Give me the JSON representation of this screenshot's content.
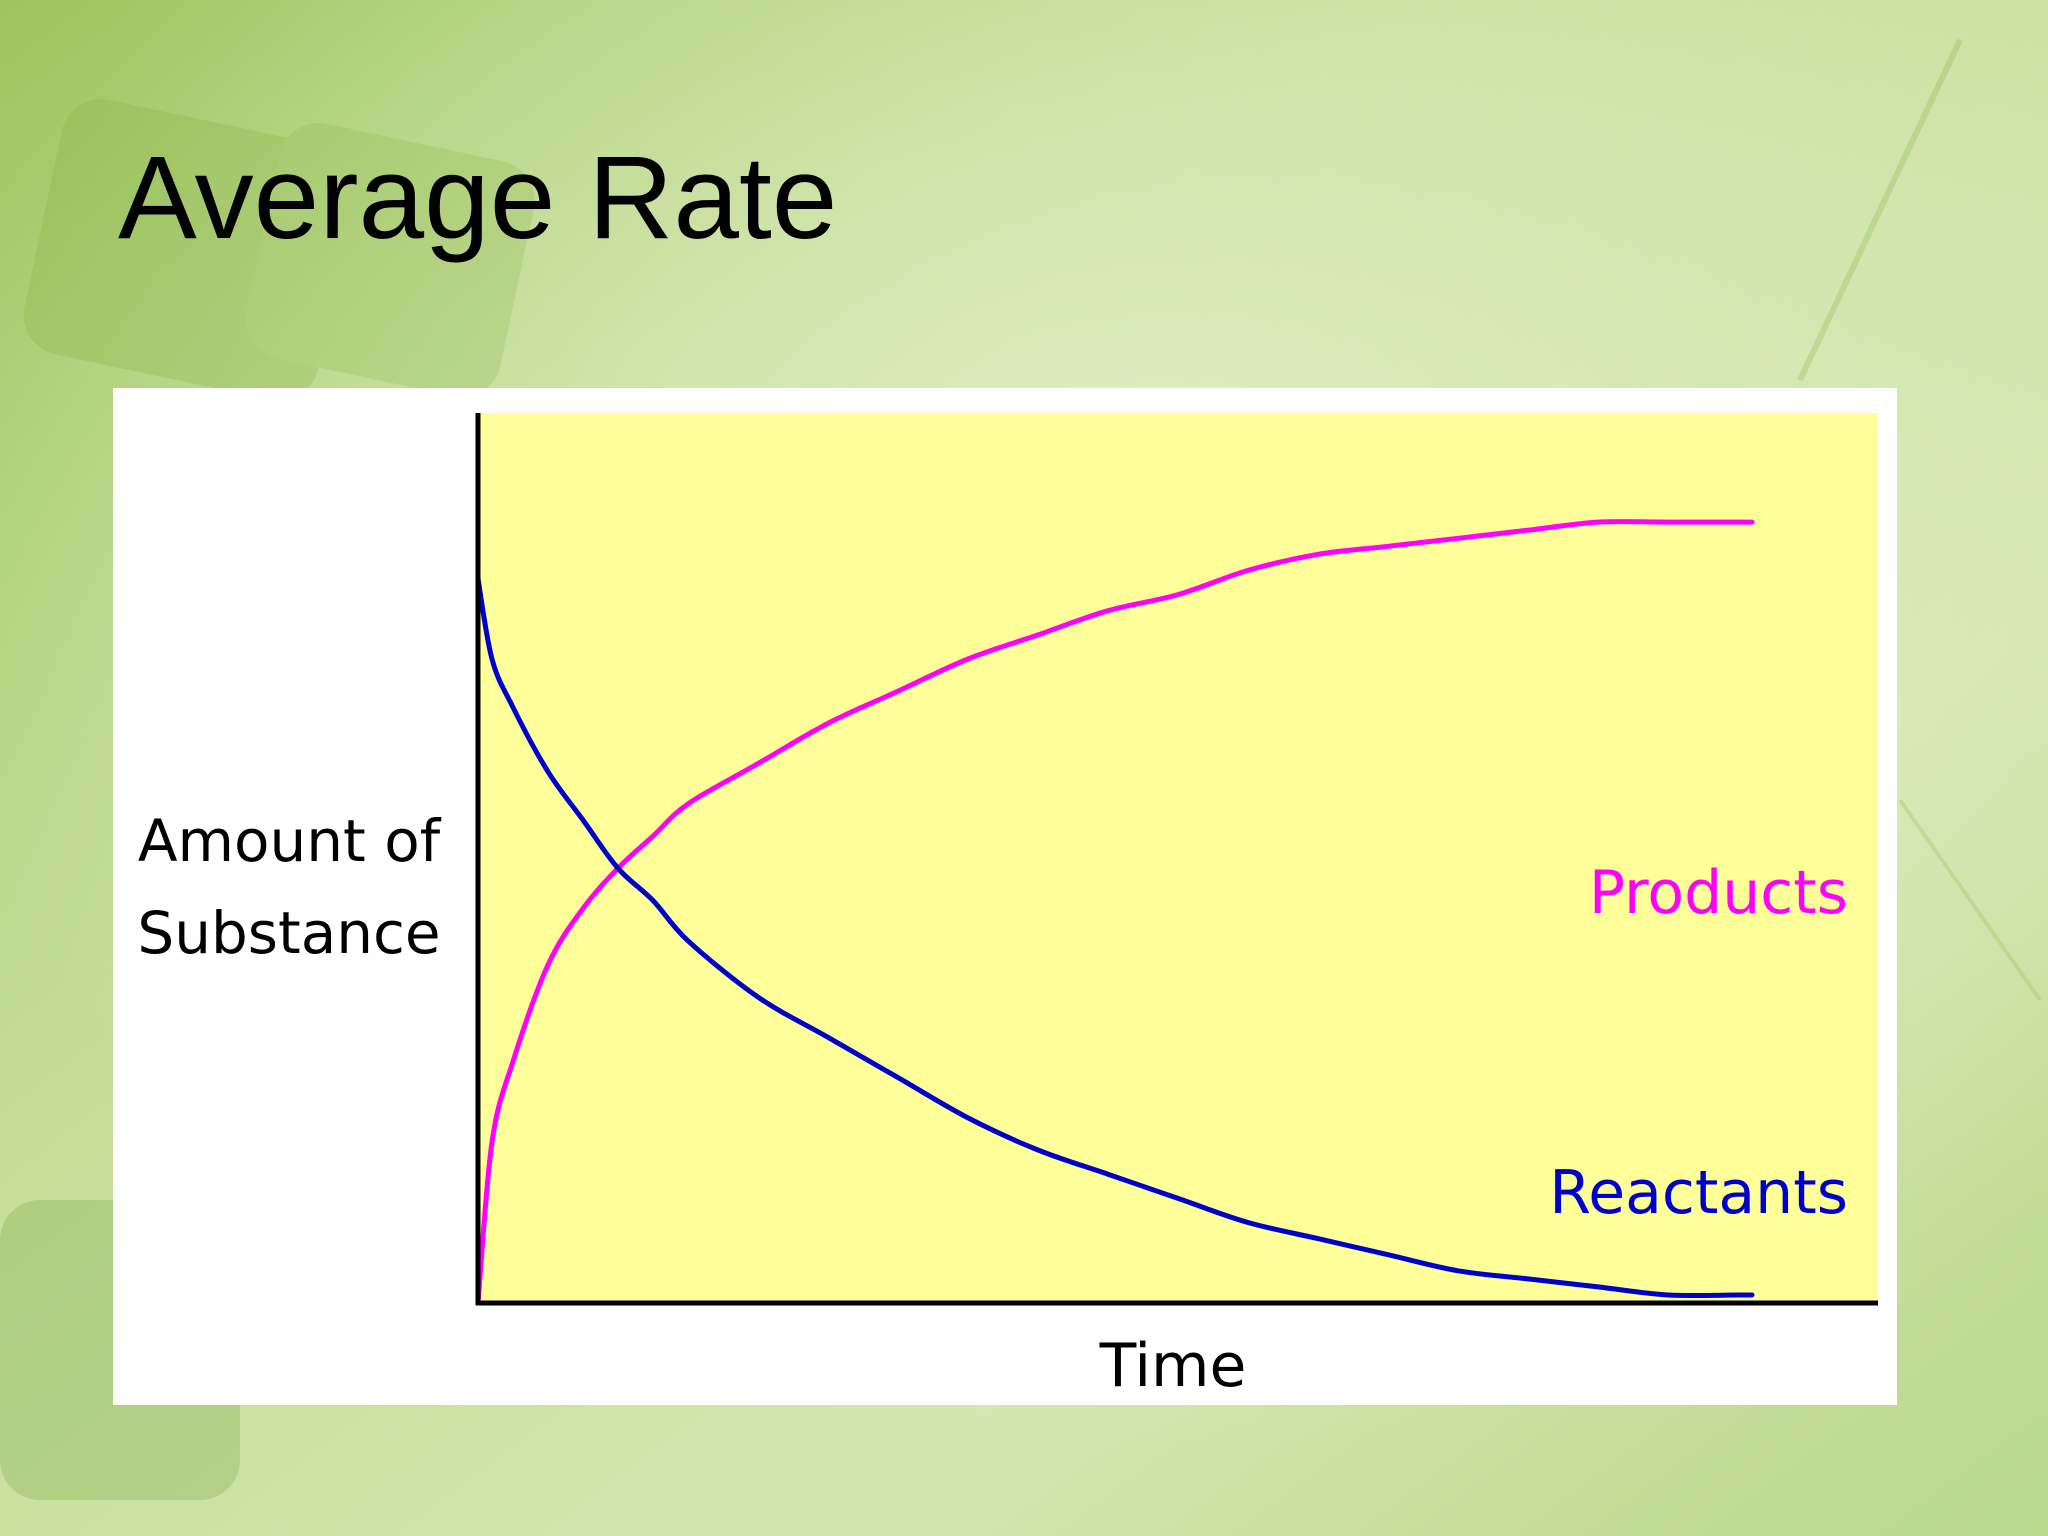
{
  "slide": {
    "title": "Average Rate"
  },
  "colors": {
    "slide_background": "#c9e0a2",
    "plot_background": "#ffff99",
    "card_background": "#ffffff",
    "axis": "#000000",
    "products": "#ff00ff",
    "reactants": "#0000cc"
  },
  "chart_data": {
    "type": "line",
    "title": "",
    "xlabel": "Time",
    "ylabel_lines": [
      "Amount of",
      "Substance"
    ],
    "ticks": "none",
    "grid": false,
    "xlim": [
      0,
      10
    ],
    "ylim": [
      0,
      1
    ],
    "series": [
      {
        "name": "Products",
        "color": "#ff00ff",
        "x": [
          0,
          0.1,
          0.25,
          0.5,
          0.75,
          1,
          1.25,
          1.5,
          2,
          2.5,
          3,
          3.5,
          4,
          4.5,
          5,
          5.5,
          6,
          6.5,
          7,
          7.5,
          8,
          8.5,
          9,
          9.1
        ],
        "values": [
          0,
          0.2,
          0.3,
          0.42,
          0.49,
          0.54,
          0.58,
          0.62,
          0.67,
          0.72,
          0.76,
          0.8,
          0.83,
          0.86,
          0.88,
          0.91,
          0.93,
          0.94,
          0.95,
          0.96,
          0.97,
          0.97,
          0.97,
          0.97
        ]
      },
      {
        "name": "Reactants",
        "color": "#0000cc",
        "x": [
          0,
          0.1,
          0.25,
          0.5,
          0.75,
          1,
          1.25,
          1.5,
          2,
          2.5,
          3,
          3.5,
          4,
          4.5,
          5,
          5.5,
          6,
          6.5,
          7,
          7.5,
          8,
          8.5,
          9,
          9.1
        ],
        "values": [
          0.9,
          0.8,
          0.74,
          0.66,
          0.6,
          0.54,
          0.5,
          0.45,
          0.38,
          0.33,
          0.28,
          0.23,
          0.19,
          0.16,
          0.13,
          0.1,
          0.08,
          0.06,
          0.04,
          0.03,
          0.02,
          0.01,
          0.01,
          0.01
        ]
      }
    ]
  }
}
